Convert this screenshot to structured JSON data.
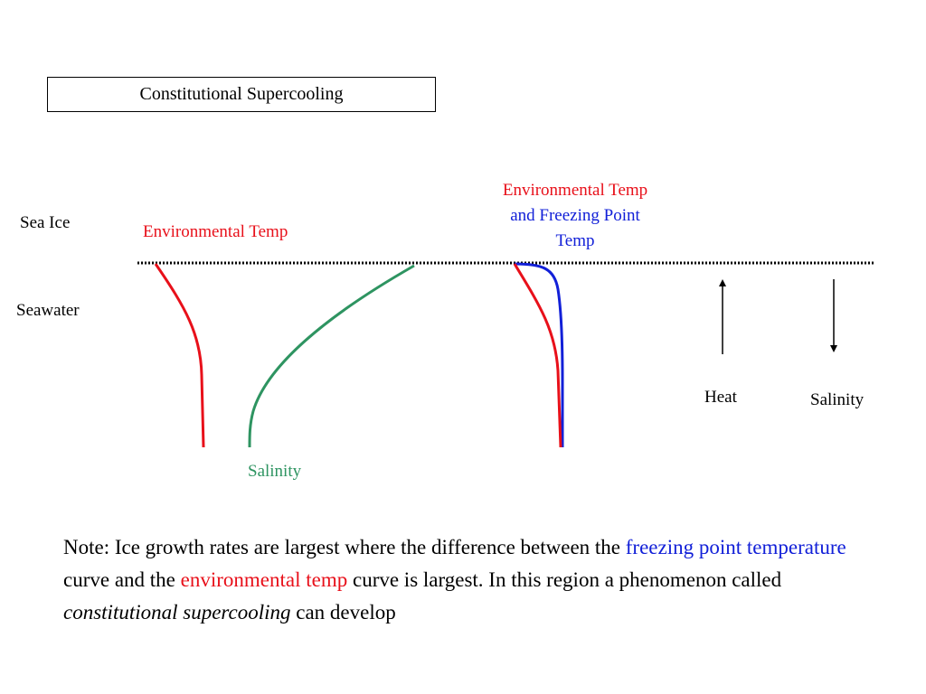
{
  "title": "Constitutional Supercooling",
  "labels": {
    "sea_ice": "Sea Ice",
    "seawater": "Seawater",
    "env_temp_left": "Environmental Temp",
    "salinity_left": "Salinity",
    "combo_line1": "Environmental Temp",
    "combo_line2": "and Freezing Point",
    "combo_line3": "Temp",
    "heat": "Heat",
    "salinity_right": "Salinity"
  },
  "note": {
    "part1": "Note: Ice growth rates are largest where the difference between the ",
    "freezing_point": "freezing point temperature",
    "part2": " curve and the ",
    "environmental": "environmental temp",
    "part3": " curve is largest.   In this region a phenomenon called ",
    "emphasis": "constitutional supercooling",
    "part4": " can develop"
  },
  "colors": {
    "environmental_temp": "#e8101a",
    "freezing_point": "#1220d8",
    "salinity": "#2e9461",
    "interface": "#000000"
  }
}
